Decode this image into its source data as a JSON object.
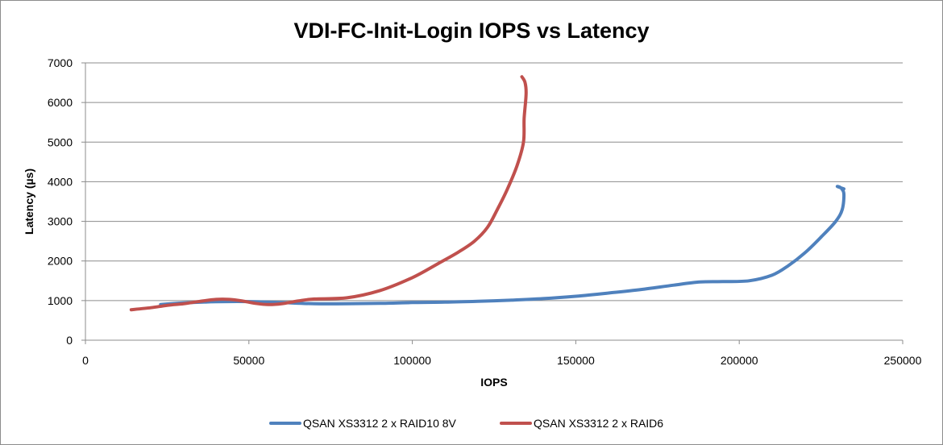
{
  "chart_data": {
    "type": "line",
    "title": "VDI-FC-Init-Login IOPS vs Latency",
    "xlabel": "IOPS",
    "ylabel": "Latency (µs)",
    "xlim": [
      0,
      250000
    ],
    "ylim": [
      0,
      7000
    ],
    "xticks": [
      0,
      50000,
      100000,
      150000,
      200000,
      250000
    ],
    "yticks": [
      0,
      1000,
      2000,
      3000,
      4000,
      5000,
      6000,
      7000
    ],
    "grid": "horizontal",
    "legend_position": "bottom",
    "series": [
      {
        "name": "QSAN XS3312 2 x RAID10 8V",
        "color": "#4f81bd",
        "points": [
          [
            23000,
            900
          ],
          [
            30000,
            940
          ],
          [
            40000,
            970
          ],
          [
            50000,
            975
          ],
          [
            60000,
            950
          ],
          [
            70000,
            920
          ],
          [
            80000,
            920
          ],
          [
            90000,
            930
          ],
          [
            100000,
            950
          ],
          [
            110000,
            960
          ],
          [
            120000,
            980
          ],
          [
            130000,
            1010
          ],
          [
            140000,
            1050
          ],
          [
            150000,
            1110
          ],
          [
            160000,
            1190
          ],
          [
            170000,
            1280
          ],
          [
            180000,
            1390
          ],
          [
            188000,
            1470
          ],
          [
            195000,
            1480
          ],
          [
            203000,
            1500
          ],
          [
            210000,
            1640
          ],
          [
            215000,
            1880
          ],
          [
            220000,
            2200
          ],
          [
            225000,
            2600
          ],
          [
            229500,
            3000
          ],
          [
            231500,
            3300
          ],
          [
            232000,
            3700
          ],
          [
            231000,
            3850
          ],
          [
            230000,
            3880
          ],
          [
            232000,
            3820
          ]
        ]
      },
      {
        "name": "QSAN XS3312 2 x RAID6",
        "color": "#c0504d",
        "points": [
          [
            14000,
            770
          ],
          [
            20000,
            820
          ],
          [
            25000,
            880
          ],
          [
            30000,
            920
          ],
          [
            35000,
            980
          ],
          [
            40000,
            1030
          ],
          [
            44000,
            1030
          ],
          [
            48000,
            990
          ],
          [
            52000,
            930
          ],
          [
            56000,
            900
          ],
          [
            60000,
            920
          ],
          [
            65000,
            990
          ],
          [
            70000,
            1040
          ],
          [
            80000,
            1070
          ],
          [
            90000,
            1250
          ],
          [
            100000,
            1580
          ],
          [
            108000,
            1940
          ],
          [
            114000,
            2220
          ],
          [
            119000,
            2500
          ],
          [
            123000,
            2850
          ],
          [
            126000,
            3300
          ],
          [
            129000,
            3800
          ],
          [
            132000,
            4400
          ],
          [
            134000,
            5000
          ],
          [
            134200,
            5600
          ],
          [
            134800,
            6200
          ],
          [
            134500,
            6500
          ],
          [
            133500,
            6650
          ]
        ]
      }
    ]
  }
}
